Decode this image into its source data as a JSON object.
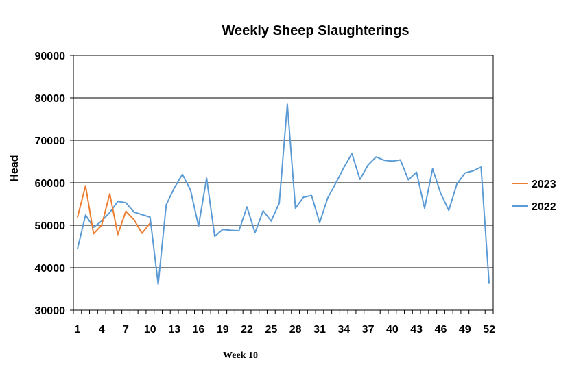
{
  "chart_data": {
    "type": "line",
    "title": "Weekly Sheep Slaughterings",
    "ylabel": "Head",
    "xlabel": "",
    "ylim": [
      30000,
      90000
    ],
    "xlim": [
      1,
      52
    ],
    "y_ticks": [
      "30000",
      "40000",
      "50000",
      "60000",
      "70000",
      "80000",
      "90000"
    ],
    "x_ticks": [
      "1",
      "4",
      "7",
      "10",
      "13",
      "16",
      "19",
      "22",
      "25",
      "28",
      "31",
      "34",
      "37",
      "40",
      "43",
      "46",
      "49",
      "52"
    ],
    "grid": "horizontal",
    "legend_position": "right",
    "series": [
      {
        "name": "2023",
        "color": "#ed7d31",
        "x": [
          1,
          2,
          3,
          4,
          5,
          6,
          7,
          8,
          9,
          10
        ],
        "values": [
          51800,
          59300,
          48000,
          50000,
          57400,
          47800,
          53300,
          51300,
          48100,
          50500
        ]
      },
      {
        "name": "2022",
        "color": "#5b9bd5",
        "x": [
          1,
          2,
          3,
          4,
          5,
          6,
          7,
          8,
          9,
          10,
          11,
          12,
          13,
          14,
          15,
          16,
          17,
          18,
          19,
          20,
          21,
          22,
          23,
          24,
          25,
          26,
          27,
          28,
          29,
          30,
          31,
          32,
          33,
          34,
          35,
          36,
          37,
          38,
          39,
          40,
          41,
          42,
          43,
          44,
          45,
          46,
          47,
          48,
          49,
          50,
          51,
          52
        ],
        "values": [
          44400,
          52400,
          49500,
          51000,
          53000,
          55600,
          55300,
          53100,
          52500,
          51900,
          36100,
          54800,
          58800,
          62000,
          58300,
          49800,
          61100,
          47400,
          49000,
          48800,
          48700,
          54300,
          48200,
          53400,
          51000,
          55200,
          78500,
          54000,
          56600,
          57000,
          50600,
          56400,
          59900,
          63600,
          66900,
          60800,
          64200,
          66100,
          65300,
          65100,
          65400,
          60700,
          62500,
          54000,
          63300,
          57500,
          53500,
          59700,
          62300,
          62800,
          63700,
          36200
        ]
      }
    ]
  },
  "footnote": "Week 10"
}
